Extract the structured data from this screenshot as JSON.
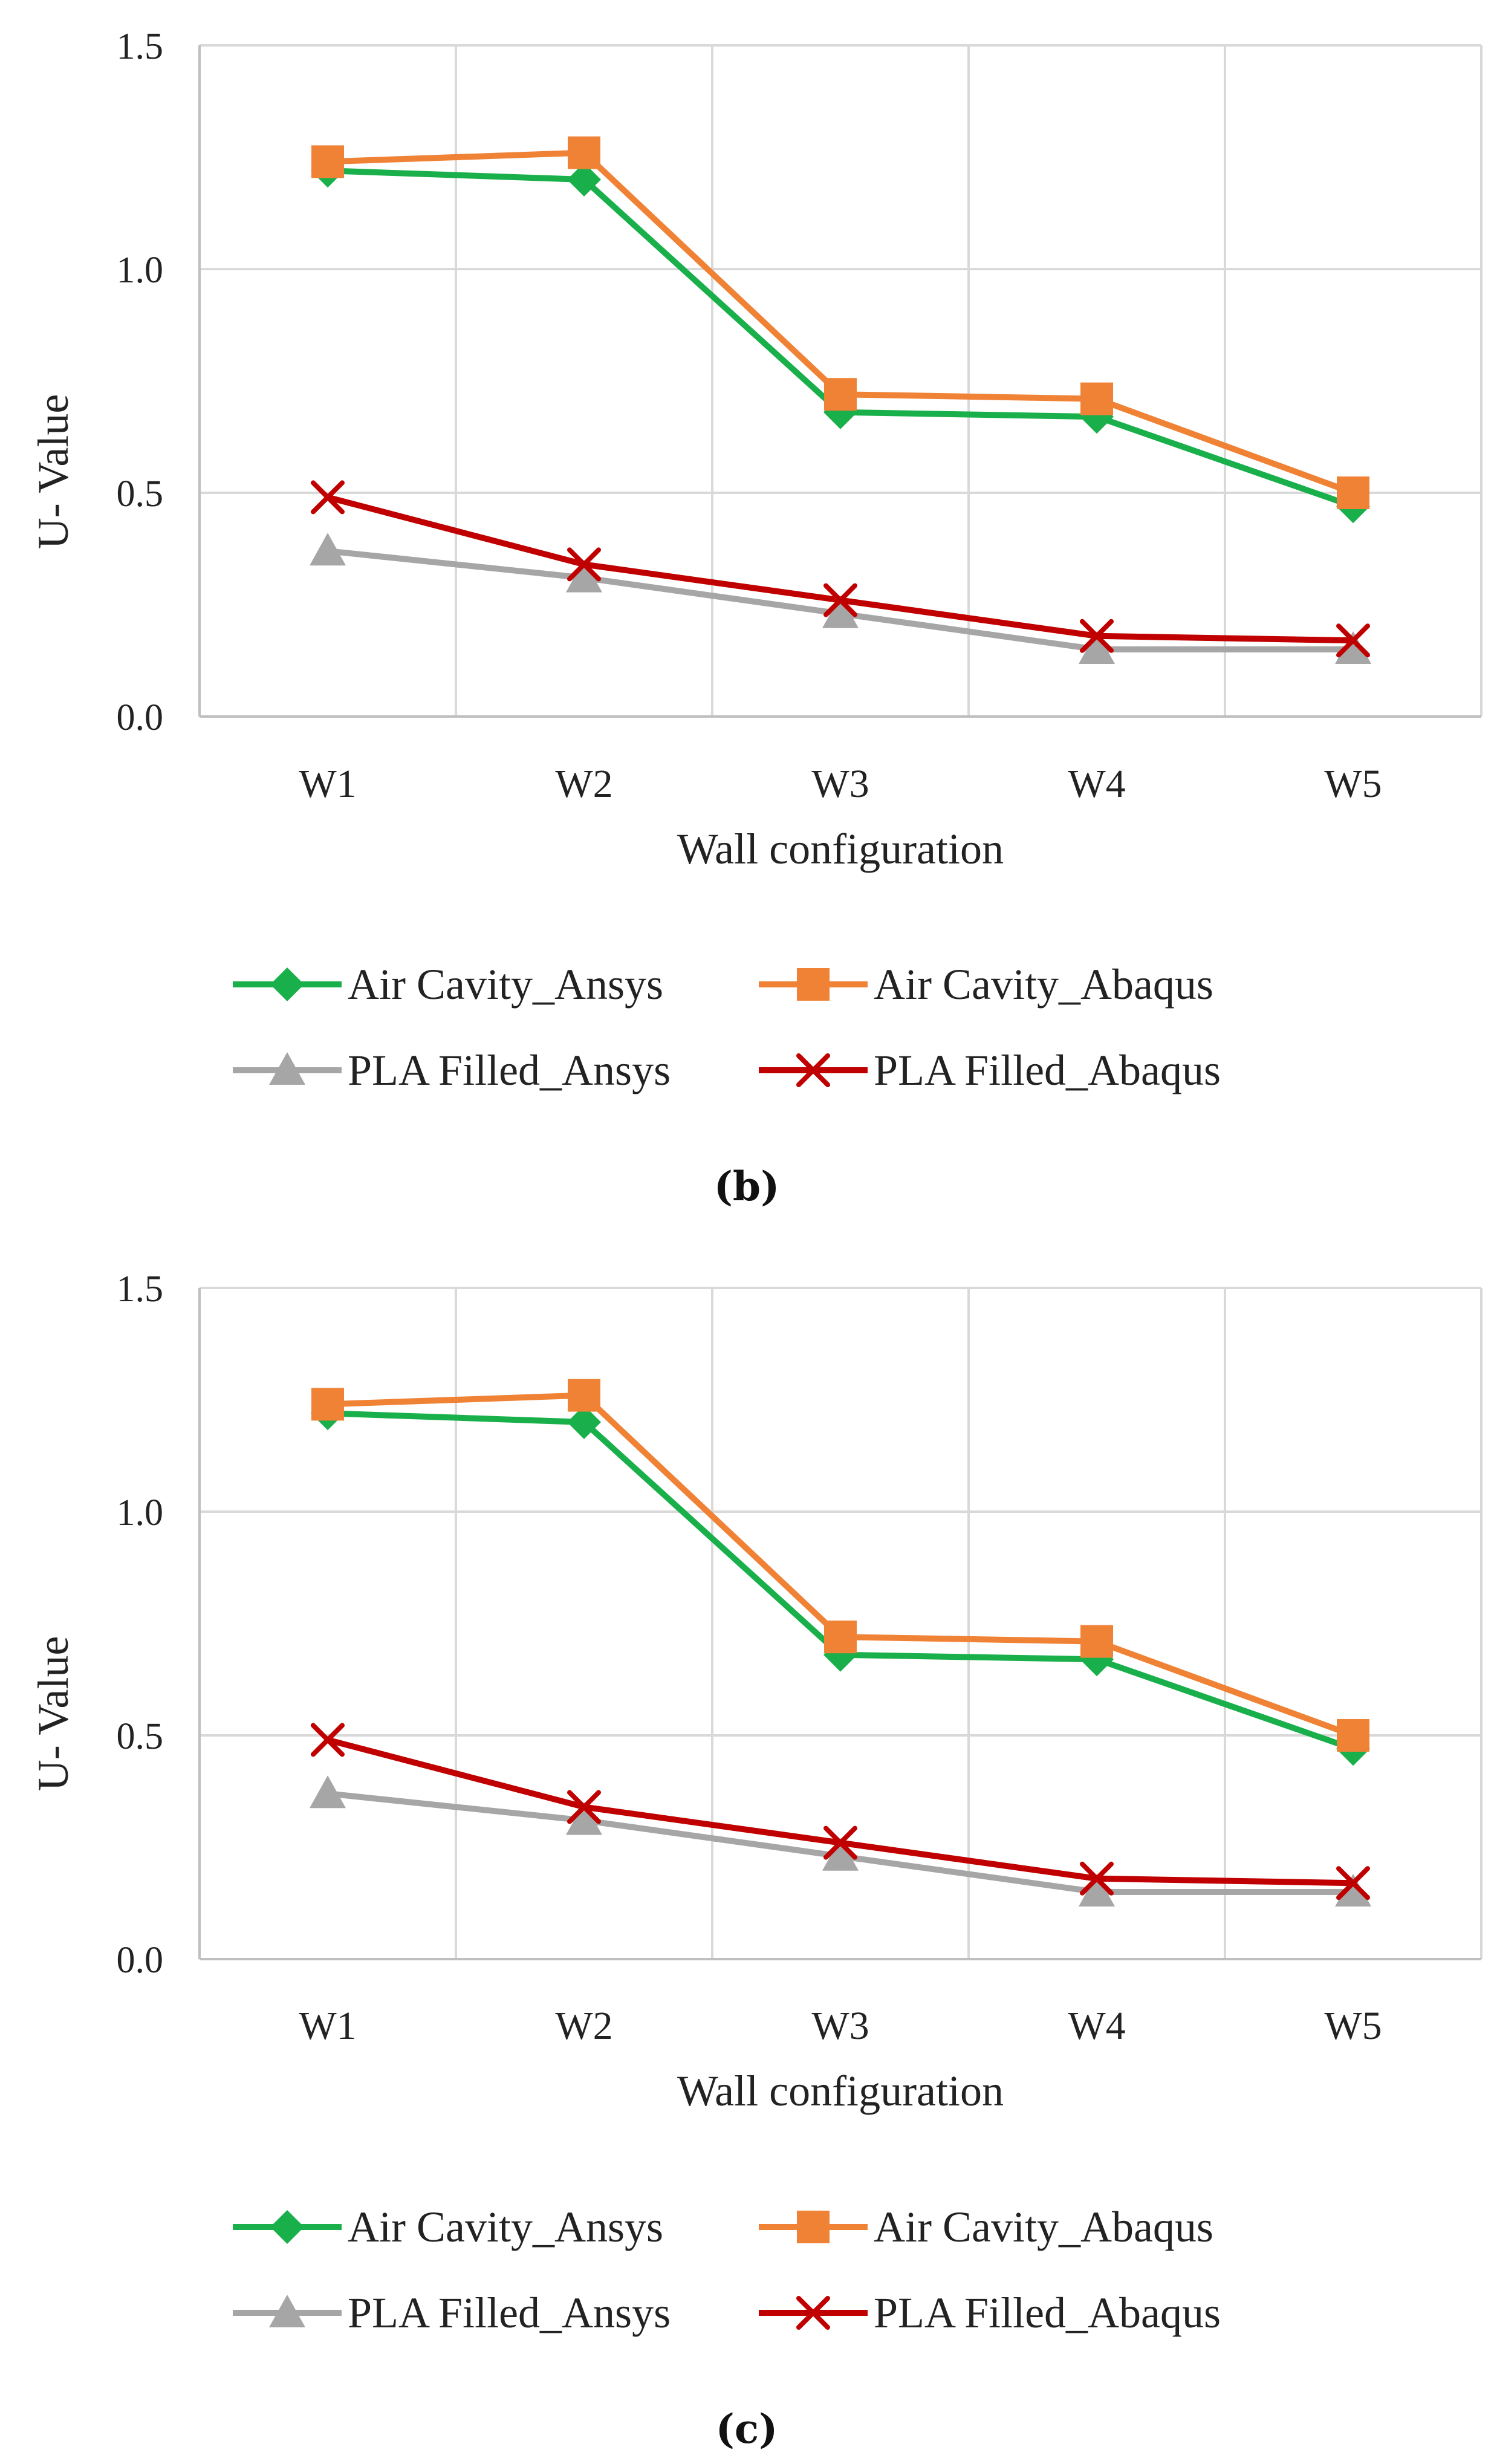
{
  "chart_data": [
    {
      "type": "line",
      "caption": "(b)",
      "categories": [
        "W1",
        "W2",
        "W3",
        "W4",
        "W5"
      ],
      "xlabel": "Wall configuration",
      "ylabel": "U- Value",
      "ylim": [
        0.0,
        1.5
      ],
      "yticks": [
        "0.0",
        "0.5",
        "1.0",
        "1.5"
      ],
      "grid": true,
      "legend_position": "bottom",
      "series": [
        {
          "name": "Air Cavity_Ansys",
          "color": "#19b04b",
          "marker": "diamond",
          "values": [
            1.22,
            1.2,
            0.68,
            0.67,
            0.47
          ]
        },
        {
          "name": "Air Cavity_Abaqus",
          "color": "#f08236",
          "marker": "square",
          "values": [
            1.24,
            1.26,
            0.72,
            0.71,
            0.5
          ]
        },
        {
          "name": "PLA Filled_Ansys",
          "color": "#a6a6a6",
          "marker": "triangle",
          "values": [
            0.37,
            0.31,
            0.23,
            0.15,
            0.15
          ]
        },
        {
          "name": "PLA Filled_Abaqus",
          "color": "#c00000",
          "marker": "x",
          "values": [
            0.49,
            0.34,
            0.26,
            0.18,
            0.17
          ]
        }
      ]
    },
    {
      "type": "line",
      "caption": "(c)",
      "categories": [
        "W1",
        "W2",
        "W3",
        "W4",
        "W5"
      ],
      "xlabel": "Wall configuration",
      "ylabel": "U- Value",
      "ylim": [
        0.0,
        1.5
      ],
      "yticks": [
        "0.0",
        "0.5",
        "1.0",
        "1.5"
      ],
      "grid": true,
      "legend_position": "bottom",
      "series": [
        {
          "name": "Air Cavity_Ansys",
          "color": "#19b04b",
          "marker": "diamond",
          "values": [
            1.22,
            1.2,
            0.68,
            0.67,
            0.47
          ]
        },
        {
          "name": "Air Cavity_Abaqus",
          "color": "#f08236",
          "marker": "square",
          "values": [
            1.24,
            1.26,
            0.72,
            0.71,
            0.5
          ]
        },
        {
          "name": "PLA Filled_Ansys",
          "color": "#a6a6a6",
          "marker": "triangle",
          "values": [
            0.37,
            0.31,
            0.23,
            0.15,
            0.15
          ]
        },
        {
          "name": "PLA Filled_Abaqus",
          "color": "#c00000",
          "marker": "x",
          "values": [
            0.49,
            0.34,
            0.26,
            0.18,
            0.17
          ]
        }
      ]
    }
  ]
}
